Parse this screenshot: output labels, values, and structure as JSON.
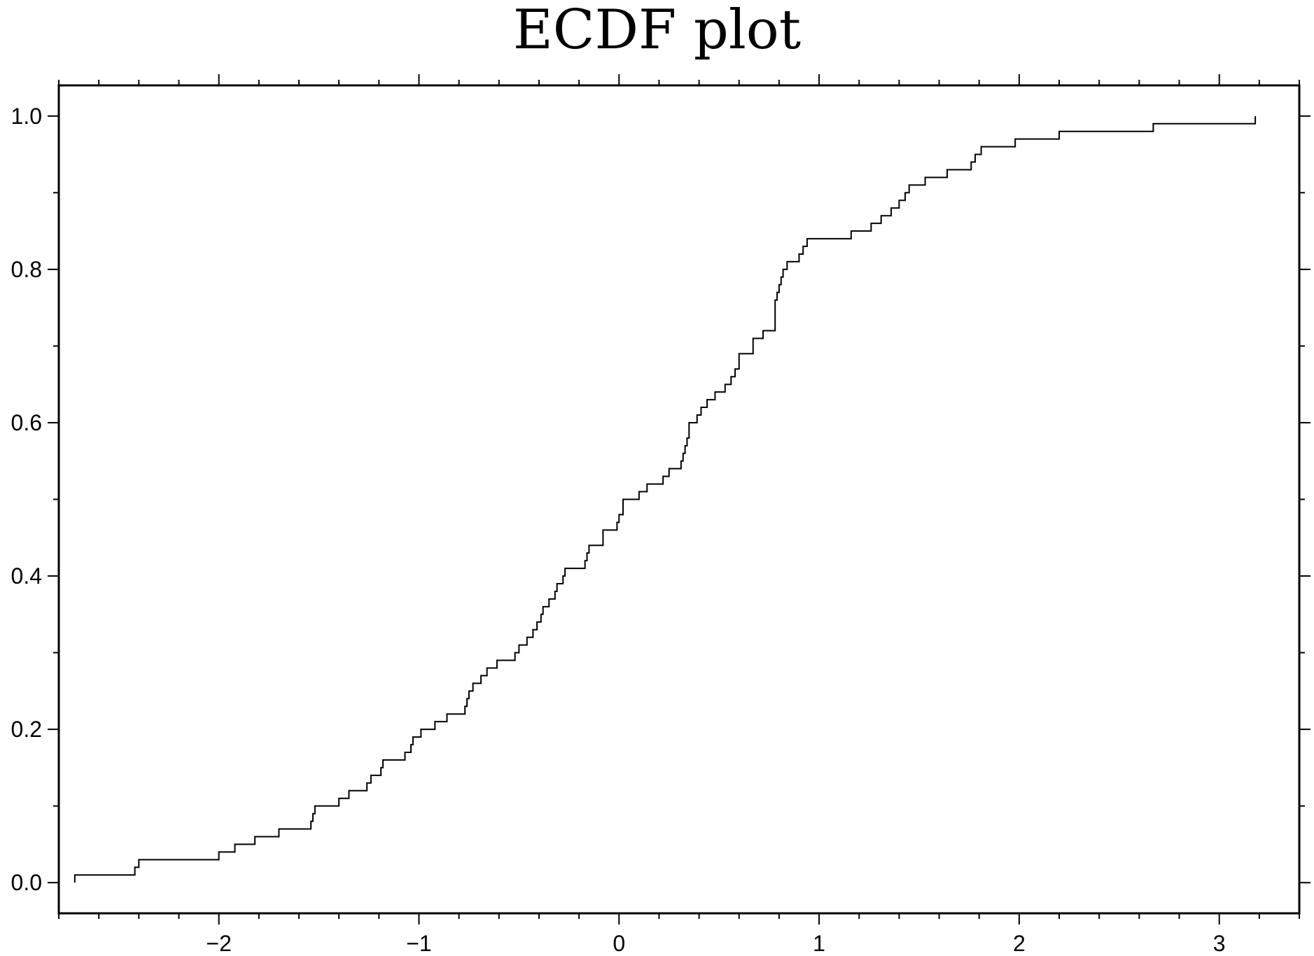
{
  "chart_data": {
    "type": "line",
    "step": true,
    "title": "ECDF plot",
    "xlabel": "",
    "ylabel": "",
    "xlim": [
      -2.8,
      3.4
    ],
    "ylim": [
      -0.04,
      1.04
    ],
    "x_ticks": [
      -2,
      -1,
      0,
      1,
      2,
      3
    ],
    "x_tick_labels": [
      "−2",
      "−1",
      "0",
      "1",
      "2",
      "3"
    ],
    "y_ticks": [
      0.0,
      0.2,
      0.4,
      0.6,
      0.8,
      1.0
    ],
    "y_tick_labels": [
      "0.0",
      "0.2",
      "0.4",
      "0.6",
      "0.8",
      "1.0"
    ],
    "grid": false,
    "line_color": "#000000",
    "series": [
      {
        "x": [
          -2.72,
          -2.42,
          -2.4,
          -2.0,
          -1.92,
          -1.82,
          -1.7,
          -1.54,
          -1.53,
          -1.52,
          -1.4,
          -1.35,
          -1.26,
          -1.24,
          -1.19,
          -1.18,
          -1.07,
          -1.04,
          -1.03,
          -0.99,
          -0.92,
          -0.86,
          -0.77,
          -0.76,
          -0.75,
          -0.73,
          -0.69,
          -0.66,
          -0.61,
          -0.6,
          -0.52,
          -0.5,
          -0.46,
          -0.43,
          -0.41,
          -0.39,
          -0.38,
          -0.35,
          -0.32,
          -0.31,
          -0.28,
          -0.27,
          -0.17,
          -0.16,
          -0.15,
          -0.08,
          -0.01,
          0.0,
          0.02,
          0.1,
          0.14,
          0.22,
          0.25,
          0.31,
          0.32,
          0.33,
          0.34,
          0.35,
          0.39,
          0.41,
          0.44,
          0.48,
          0.53,
          0.56,
          0.58,
          0.6,
          0.67,
          0.72,
          0.78,
          0.79,
          0.8,
          0.81,
          0.82,
          0.84,
          0.9,
          0.92,
          0.93,
          0.94,
          0.95,
          0.98,
          1.0,
          1.1,
          1.16,
          1.26,
          1.31,
          1.36,
          1.4,
          1.42,
          1.43,
          1.44,
          1.45,
          1.53,
          1.64,
          1.76,
          1.78,
          1.79,
          1.81,
          1.98,
          2.2,
          2.67,
          3.18
        ],
        "y": [
          0.01,
          0.02,
          0.03,
          0.04,
          0.05,
          0.06,
          0.07,
          0.08,
          0.09,
          0.1,
          0.11,
          0.12,
          0.13,
          0.14,
          0.15,
          0.16,
          0.17,
          0.18,
          0.19,
          0.2,
          0.21,
          0.22,
          0.23,
          0.24,
          0.25,
          0.26,
          0.27,
          0.28,
          0.29,
          0.29,
          0.3,
          0.31,
          0.32,
          0.33,
          0.34,
          0.35,
          0.36,
          0.37,
          0.38,
          0.39,
          0.4,
          0.41,
          0.42,
          0.43,
          0.44,
          0.46,
          0.47,
          0.48,
          0.5,
          0.51,
          0.52,
          0.53,
          0.54,
          0.55,
          0.56,
          0.57,
          0.58,
          0.6,
          0.61,
          0.62,
          0.63,
          0.64,
          0.65,
          0.66,
          0.67,
          0.69,
          0.71,
          0.72,
          0.76,
          0.77,
          0.78,
          0.79,
          0.8,
          0.81,
          0.82,
          0.83,
          0.83,
          0.84,
          0.84,
          0.84,
          0.84,
          0.84,
          0.85,
          0.86,
          0.87,
          0.88,
          0.89,
          0.89,
          0.9,
          0.9,
          0.91,
          0.92,
          0.93,
          0.94,
          0.95,
          0.95,
          0.96,
          0.97,
          0.98,
          0.99,
          1.0
        ]
      }
    ]
  }
}
